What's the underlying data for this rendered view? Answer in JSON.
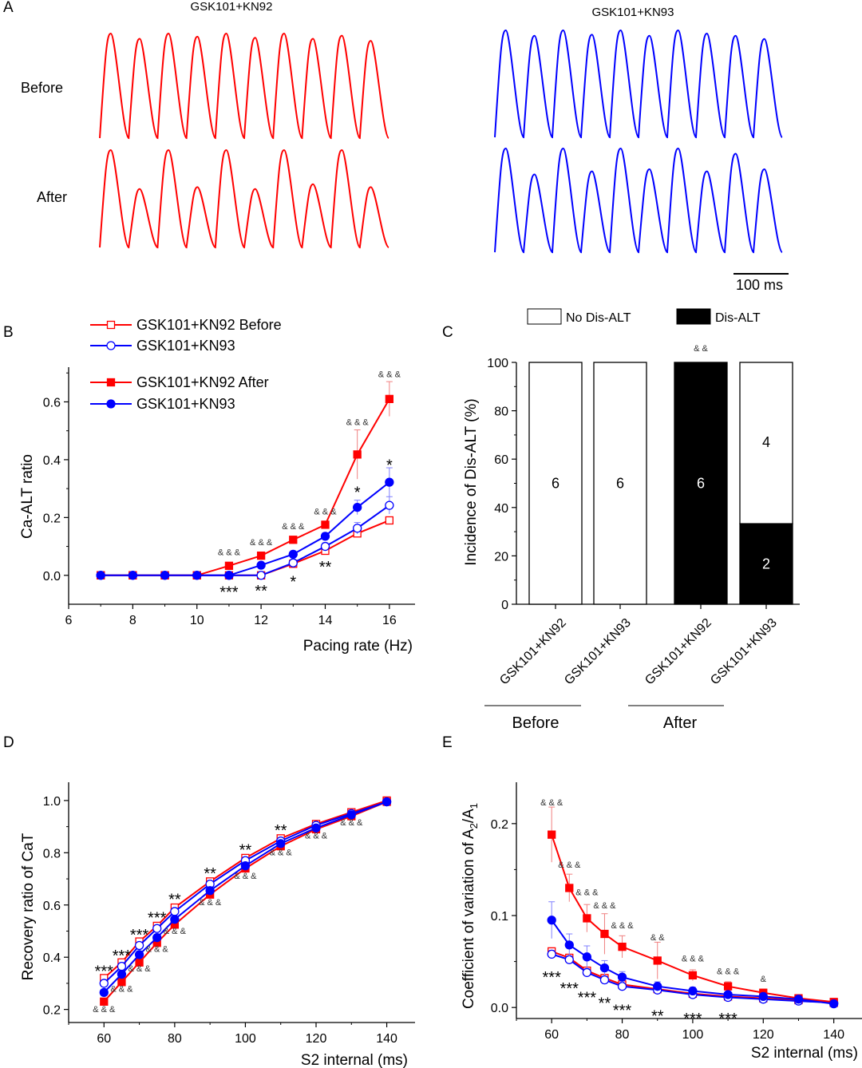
{
  "panel_labels": {
    "a": "A",
    "b": "B",
    "c": "C",
    "d": "D",
    "e": "E"
  },
  "colors": {
    "kn92": "#ff0000",
    "kn93": "#0000ff",
    "axis": "#000000",
    "error": "#f08080",
    "error_blue": "#8080ff"
  },
  "panel_a": {
    "col_titles": [
      "GSK101+KN92",
      "GSK101+KN93"
    ],
    "row_labels": [
      "Before",
      "After"
    ],
    "scale_bar_label": "100 ms"
  },
  "chart_data": [
    {
      "panel": "B",
      "type": "line",
      "xlabel": "Pacing rate (Hz)",
      "ylabel": "Ca-ALT ratio",
      "xlim": [
        6,
        16.8
      ],
      "ylim": [
        -0.1,
        0.72
      ],
      "xticks": [
        "6",
        "8",
        "10",
        "12",
        "14",
        "16"
      ],
      "yticks": [
        "0.0",
        "0.2",
        "0.4",
        "0.6"
      ],
      "legend": [
        {
          "label": "GSK101+KN92 Before",
          "color": "#ff0000",
          "marker": "square-open"
        },
        {
          "label": "GSK101+KN93",
          "color": "#0000ff",
          "marker": "circle-open"
        },
        {
          "label": "GSK101+KN92 After",
          "color": "#ff0000",
          "marker": "square-filled"
        },
        {
          "label": "GSK101+KN93",
          "color": "#0000ff",
          "marker": "circle-filled"
        }
      ],
      "x": [
        7,
        8,
        9,
        10,
        11,
        12,
        13,
        14,
        15,
        16
      ],
      "series": [
        {
          "name": "GSK101+KN92 Before",
          "color": "#ff0000",
          "marker": "square-open",
          "values": [
            0,
            0,
            0,
            0,
            0,
            0,
            0.04,
            0.085,
            0.145,
            0.19
          ],
          "err": [
            0,
            0,
            0,
            0,
            0,
            0,
            0.005,
            0.01,
            0.01,
            0.012
          ]
        },
        {
          "name": "GSK101+KN93",
          "color": "#0000ff",
          "marker": "circle-open",
          "values": [
            0,
            0,
            0,
            0,
            0,
            0,
            0.043,
            0.1,
            0.163,
            0.242
          ],
          "err": [
            0,
            0,
            0,
            0,
            0,
            0,
            0.005,
            0.012,
            0.02,
            0.03
          ]
        },
        {
          "name": "GSK101+KN92 After",
          "color": "#ff0000",
          "marker": "square-filled",
          "values": [
            0,
            0,
            0,
            0,
            0.033,
            0.068,
            0.123,
            0.175,
            0.418,
            0.61
          ],
          "err": [
            0,
            0,
            0,
            0,
            0.005,
            0.008,
            0.01,
            0.012,
            0.085,
            0.06
          ]
        },
        {
          "name": "GSK101+KN93",
          "color": "#0000ff",
          "marker": "circle-filled",
          "values": [
            0,
            0,
            0,
            0,
            0,
            0.035,
            0.073,
            0.135,
            0.235,
            0.322
          ],
          "err": [
            0,
            0,
            0,
            0,
            0,
            0.005,
            0.008,
            0.012,
            0.025,
            0.05
          ]
        }
      ],
      "annotations": [
        {
          "x": 11,
          "y": 0.07,
          "text": "& & &",
          "kind": "amp"
        },
        {
          "x": 12,
          "y": 0.105,
          "text": "& & &",
          "kind": "amp"
        },
        {
          "x": 13,
          "y": 0.16,
          "text": "& & &",
          "kind": "amp"
        },
        {
          "x": 14,
          "y": 0.21,
          "text": "& & &",
          "kind": "amp"
        },
        {
          "x": 15,
          "y": 0.52,
          "text": "& & &",
          "kind": "amp"
        },
        {
          "x": 16,
          "y": 0.685,
          "text": "& & &",
          "kind": "amp"
        },
        {
          "x": 11,
          "y": -0.055,
          "text": "***",
          "kind": "star"
        },
        {
          "x": 12,
          "y": -0.05,
          "text": "**",
          "kind": "star"
        },
        {
          "x": 13,
          "y": -0.018,
          "text": "*",
          "kind": "star"
        },
        {
          "x": 14,
          "y": 0.032,
          "text": "**",
          "kind": "star"
        },
        {
          "x": 15,
          "y": 0.29,
          "text": "*",
          "kind": "star"
        },
        {
          "x": 16,
          "y": 0.385,
          "text": "*",
          "kind": "star"
        }
      ]
    },
    {
      "panel": "C",
      "type": "bar",
      "ylabel": "Incidence of Dis-ALT (%)",
      "ylim": [
        0,
        100
      ],
      "yticks": [
        "0",
        "20",
        "40",
        "60",
        "80",
        "100"
      ],
      "categories": [
        "GSK101+KN92",
        "GSK101+KN93",
        "GSK101+KN92",
        "GSK101+KN93"
      ],
      "groups": [
        {
          "label": "Before",
          "span": [
            0,
            1
          ]
        },
        {
          "label": "After",
          "span": [
            2,
            3
          ]
        }
      ],
      "legend": [
        {
          "label": "No Dis-ALT",
          "fill": "#ffffff"
        },
        {
          "label": "Dis-ALT",
          "fill": "#000000"
        }
      ],
      "series": [
        {
          "name": "Dis-ALT",
          "values": [
            0,
            0,
            100,
            33.3
          ]
        },
        {
          "name": "No Dis-ALT",
          "values": [
            100,
            100,
            0,
            66.7
          ]
        }
      ],
      "bar_labels": [
        {
          "bar": 0,
          "segment": "No Dis-ALT",
          "text": "6"
        },
        {
          "bar": 1,
          "segment": "No Dis-ALT",
          "text": "6"
        },
        {
          "bar": 2,
          "segment": "Dis-ALT",
          "text": "6"
        },
        {
          "bar": 3,
          "segment": "No Dis-ALT",
          "text": "4"
        },
        {
          "bar": 3,
          "segment": "Dis-ALT",
          "text": "2"
        }
      ],
      "annotations": [
        {
          "bar": 2,
          "text": "& &"
        }
      ]
    },
    {
      "panel": "D",
      "type": "line",
      "xlabel": "S2 internal (ms)",
      "ylabel": "Recovery ratio of CaT",
      "xlim": [
        50,
        148
      ],
      "ylim": [
        0.15,
        1.07
      ],
      "xticks": [
        "60",
        "80",
        "100",
        "120",
        "140"
      ],
      "yticks": [
        "0.2",
        "0.4",
        "0.6",
        "0.8",
        "1.0"
      ],
      "x": [
        60,
        65,
        70,
        75,
        80,
        90,
        100,
        110,
        120,
        130,
        140
      ],
      "series": [
        {
          "name": "GSK101+KN92 Before",
          "color": "#ff0000",
          "marker": "square-open",
          "values": [
            0.32,
            0.38,
            0.46,
            0.52,
            0.59,
            0.69,
            0.78,
            0.855,
            0.91,
            0.955,
            1.0
          ]
        },
        {
          "name": "GSK101+KN93",
          "color": "#0000ff",
          "marker": "circle-open",
          "values": [
            0.3,
            0.365,
            0.445,
            0.51,
            0.575,
            0.68,
            0.77,
            0.845,
            0.905,
            0.95,
            0.995
          ]
        },
        {
          "name": "GSK101+KN92 After",
          "color": "#ff0000",
          "marker": "square-filled",
          "values": [
            0.23,
            0.305,
            0.38,
            0.455,
            0.525,
            0.64,
            0.74,
            0.825,
            0.89,
            0.94,
            0.995
          ]
        },
        {
          "name": "GSK101+KN93",
          "color": "#0000ff",
          "marker": "circle-filled",
          "values": [
            0.265,
            0.335,
            0.41,
            0.475,
            0.545,
            0.655,
            0.75,
            0.835,
            0.895,
            0.945,
            0.995
          ]
        }
      ],
      "annotations": [
        {
          "x": 60,
          "y": 0.35,
          "text": "***",
          "kind": "star"
        },
        {
          "x": 65,
          "y": 0.41,
          "text": "***",
          "kind": "star"
        },
        {
          "x": 70,
          "y": 0.49,
          "text": "***",
          "kind": "star"
        },
        {
          "x": 75,
          "y": 0.555,
          "text": "***",
          "kind": "star"
        },
        {
          "x": 80,
          "y": 0.625,
          "text": "**",
          "kind": "star"
        },
        {
          "x": 90,
          "y": 0.725,
          "text": "**",
          "kind": "star"
        },
        {
          "x": 100,
          "y": 0.815,
          "text": "**",
          "kind": "star"
        },
        {
          "x": 110,
          "y": 0.89,
          "text": "**",
          "kind": "star"
        },
        {
          "x": 60,
          "y": 0.19,
          "text": "& & &",
          "kind": "amp"
        },
        {
          "x": 65,
          "y": 0.268,
          "text": "& & &",
          "kind": "amp"
        },
        {
          "x": 70,
          "y": 0.345,
          "text": "& & &",
          "kind": "amp"
        },
        {
          "x": 75,
          "y": 0.42,
          "text": "& & &",
          "kind": "amp"
        },
        {
          "x": 80,
          "y": 0.49,
          "text": "& & &",
          "kind": "amp"
        },
        {
          "x": 90,
          "y": 0.6,
          "text": "& & &",
          "kind": "amp"
        },
        {
          "x": 100,
          "y": 0.7,
          "text": "& & &",
          "kind": "amp"
        },
        {
          "x": 110,
          "y": 0.79,
          "text": "& & &",
          "kind": "amp"
        },
        {
          "x": 120,
          "y": 0.855,
          "text": "& & &",
          "kind": "amp"
        },
        {
          "x": 130,
          "y": 0.905,
          "text": "& & &",
          "kind": "amp"
        }
      ]
    },
    {
      "panel": "E",
      "type": "line",
      "xlabel": "S2 internal (ms)",
      "ylabel_main": "Coefficient of variation of A",
      "ylabel_sub1": "2",
      "ylabel_slash": "/A",
      "ylabel_sub2": "1",
      "xlim": [
        50,
        148
      ],
      "ylim": [
        -0.012,
        0.245
      ],
      "xticks": [
        "60",
        "80",
        "100",
        "120",
        "140"
      ],
      "yticks": [
        "0.0",
        "0.1",
        "0.2"
      ],
      "x": [
        60,
        65,
        70,
        75,
        80,
        90,
        100,
        110,
        120,
        130,
        140
      ],
      "series": [
        {
          "name": "GSK101+KN92 Before",
          "color": "#ff0000",
          "marker": "square-open",
          "values": [
            0.061,
            0.054,
            0.04,
            0.032,
            0.025,
            0.02,
            0.015,
            0.012,
            0.01,
            0.008,
            0.005
          ],
          "err": [
            0.004,
            0.004,
            0.004,
            0.004,
            0.003,
            0.003,
            0.002,
            0.002,
            0.002,
            0.002,
            0.001
          ]
        },
        {
          "name": "GSK101+KN93",
          "color": "#0000ff",
          "marker": "circle-open",
          "values": [
            0.058,
            0.052,
            0.038,
            0.03,
            0.023,
            0.019,
            0.014,
            0.011,
            0.009,
            0.007,
            0.005
          ],
          "err": [
            0.004,
            0.004,
            0.004,
            0.004,
            0.003,
            0.003,
            0.002,
            0.002,
            0.002,
            0.002,
            0.001
          ]
        },
        {
          "name": "GSK101+KN92 After",
          "color": "#ff0000",
          "marker": "square-filled",
          "values": [
            0.188,
            0.13,
            0.097,
            0.08,
            0.066,
            0.051,
            0.035,
            0.023,
            0.016,
            0.01,
            0.006
          ],
          "err": [
            0.03,
            0.015,
            0.015,
            0.022,
            0.012,
            0.02,
            0.006,
            0.005,
            0.004,
            0.003,
            0.002
          ]
        },
        {
          "name": "GSK101+KN93",
          "color": "#0000ff",
          "marker": "circle-filled",
          "values": [
            0.095,
            0.068,
            0.055,
            0.043,
            0.033,
            0.023,
            0.018,
            0.014,
            0.012,
            0.009,
            0.004
          ],
          "err": [
            0.02,
            0.012,
            0.012,
            0.008,
            0.006,
            0.005,
            0.004,
            0.003,
            0.003,
            0.002,
            0.002
          ]
        }
      ],
      "annotations": [
        {
          "x": 60,
          "y": 0.22,
          "text": "& & &",
          "kind": "amp"
        },
        {
          "x": 65,
          "y": 0.152,
          "text": "& & &",
          "kind": "amp"
        },
        {
          "x": 70,
          "y": 0.122,
          "text": "& & &",
          "kind": "amp"
        },
        {
          "x": 75,
          "y": 0.108,
          "text": "& & &",
          "kind": "amp"
        },
        {
          "x": 80,
          "y": 0.086,
          "text": "& & &",
          "kind": "amp"
        },
        {
          "x": 90,
          "y": 0.073,
          "text": "& &",
          "kind": "amp"
        },
        {
          "x": 100,
          "y": 0.05,
          "text": "& & &",
          "kind": "amp"
        },
        {
          "x": 110,
          "y": 0.036,
          "text": "& & &",
          "kind": "amp"
        },
        {
          "x": 120,
          "y": 0.028,
          "text": "&",
          "kind": "amp"
        },
        {
          "x": 60,
          "y": 0.034,
          "text": "***",
          "kind": "star"
        },
        {
          "x": 65,
          "y": 0.022,
          "text": "***",
          "kind": "star"
        },
        {
          "x": 70,
          "y": 0.012,
          "text": "***",
          "kind": "star"
        },
        {
          "x": 75,
          "y": 0.006,
          "text": "**",
          "kind": "star"
        },
        {
          "x": 80,
          "y": -0.002,
          "text": "***",
          "kind": "star"
        },
        {
          "x": 90,
          "y": -0.008,
          "text": "**",
          "kind": "star"
        },
        {
          "x": 100,
          "y": -0.011,
          "text": "***",
          "kind": "star"
        },
        {
          "x": 110,
          "y": -0.011,
          "text": "***",
          "kind": "star"
        }
      ]
    }
  ]
}
